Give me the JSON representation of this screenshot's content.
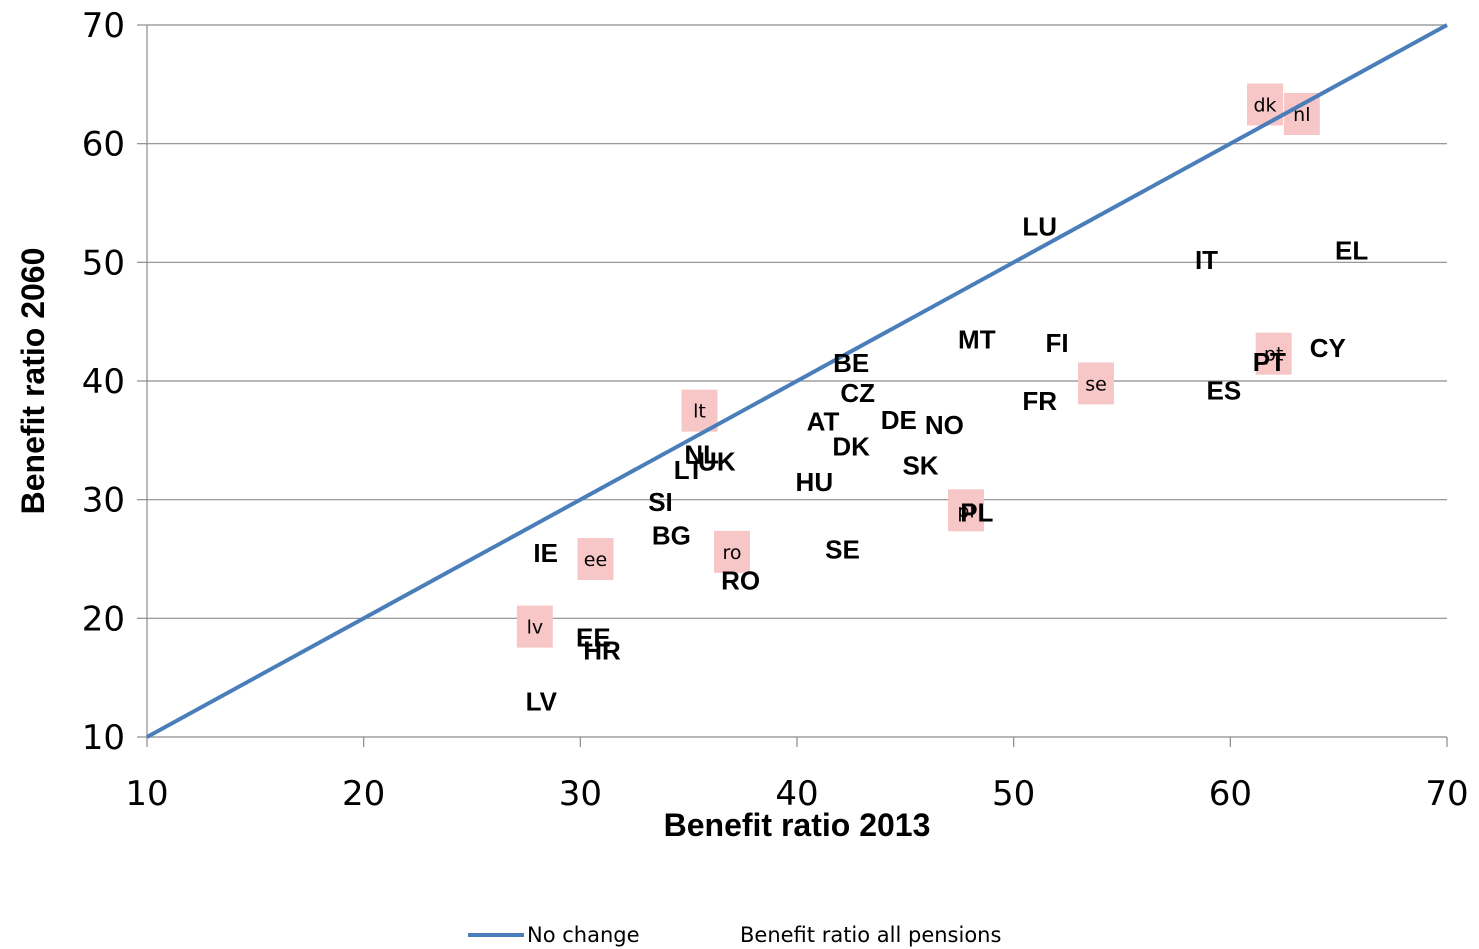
{
  "chart_data": {
    "type": "scatter",
    "xlabel": "Benefit ratio 2013",
    "ylabel": "Benefit ratio 2060",
    "xlim": [
      10,
      70
    ],
    "ylim": [
      10,
      70
    ],
    "xticks": [
      "10",
      "20",
      "30",
      "40",
      "50",
      "60",
      "70"
    ],
    "yticks": [
      "10",
      "20",
      "30",
      "40",
      "50",
      "60",
      "70"
    ],
    "grid": "horizontal",
    "legend_position": "bottom",
    "reference_line": {
      "name": "No change",
      "x": [
        10,
        70
      ],
      "y": [
        10,
        70
      ],
      "color": "#4a7ebb"
    },
    "series": [
      {
        "name": "Benefit ratio all pensions",
        "points": [
          {
            "label": "LU",
            "x": 51.2,
            "y": 53.0
          },
          {
            "label": "IT",
            "x": 58.9,
            "y": 50.2
          },
          {
            "label": "EL",
            "x": 65.6,
            "y": 51.0
          },
          {
            "label": "MT",
            "x": 48.3,
            "y": 43.5
          },
          {
            "label": "FI",
            "x": 52.0,
            "y": 43.2
          },
          {
            "label": "CY",
            "x": 64.5,
            "y": 42.8
          },
          {
            "label": "PT",
            "x": 61.8,
            "y": 41.6
          },
          {
            "label": "BE",
            "x": 42.5,
            "y": 41.5
          },
          {
            "label": "CZ",
            "x": 42.8,
            "y": 39.0
          },
          {
            "label": "FR",
            "x": 51.2,
            "y": 38.3
          },
          {
            "label": "ES",
            "x": 59.7,
            "y": 39.2
          },
          {
            "label": "AT",
            "x": 41.2,
            "y": 36.6
          },
          {
            "label": "DE",
            "x": 44.7,
            "y": 36.7
          },
          {
            "label": "NO",
            "x": 46.8,
            "y": 36.3
          },
          {
            "label": "DK",
            "x": 42.5,
            "y": 34.5
          },
          {
            "label": "NL",
            "x": 35.6,
            "y": 33.8
          },
          {
            "label": "UK",
            "x": 36.3,
            "y": 33.2
          },
          {
            "label": "LT",
            "x": 35.0,
            "y": 32.5
          },
          {
            "label": "SK",
            "x": 45.7,
            "y": 32.9
          },
          {
            "label": "HU",
            "x": 40.8,
            "y": 31.5
          },
          {
            "label": "SI",
            "x": 33.7,
            "y": 29.8
          },
          {
            "label": "PL",
            "x": 48.3,
            "y": 28.9
          },
          {
            "label": "BG",
            "x": 34.2,
            "y": 27.0
          },
          {
            "label": "SE",
            "x": 42.1,
            "y": 25.8
          },
          {
            "label": "IE",
            "x": 28.4,
            "y": 25.5
          },
          {
            "label": "RO",
            "x": 37.4,
            "y": 23.2
          },
          {
            "label": "EE",
            "x": 30.6,
            "y": 18.4
          },
          {
            "label": "HR",
            "x": 31.0,
            "y": 17.3
          },
          {
            "label": "LV",
            "x": 28.2,
            "y": 13.0
          }
        ]
      },
      {
        "name": "",
        "color": "#f7c6c7",
        "points": [
          {
            "label": "dk",
            "x": 61.6,
            "y": 63.3
          },
          {
            "label": "nl",
            "x": 63.3,
            "y": 62.5
          },
          {
            "label": "lt",
            "x": 35.5,
            "y": 37.5
          },
          {
            "label": "se",
            "x": 53.8,
            "y": 39.8
          },
          {
            "label": "pt",
            "x": 62.0,
            "y": 42.3
          },
          {
            "label": "ee",
            "x": 30.7,
            "y": 25.0
          },
          {
            "label": "ro",
            "x": 37.0,
            "y": 25.6
          },
          {
            "label": "pl",
            "x": 47.8,
            "y": 29.1
          },
          {
            "label": "lv",
            "x": 27.9,
            "y": 19.3
          }
        ]
      }
    ]
  }
}
